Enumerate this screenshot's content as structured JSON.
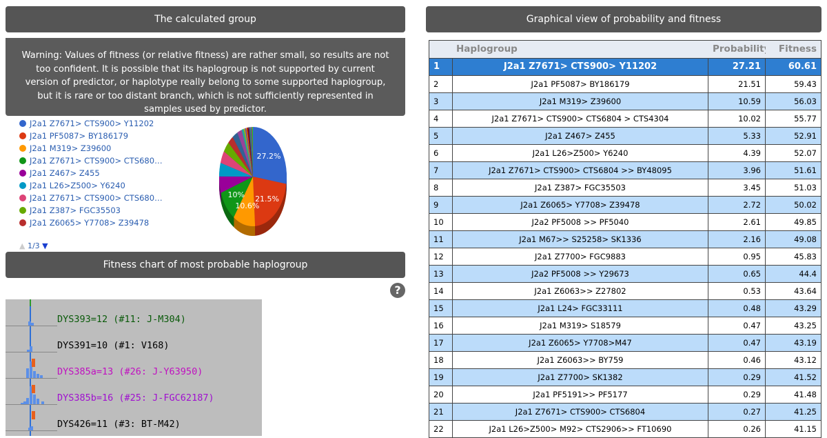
{
  "left": {
    "header": "The calculated group",
    "warning": "Warning: Values of fitness (or relative fitness) are rather small, so results are not too confident. It is possible that its haplogroup is not supported by current version of predictor, or haplotype really belong to some supported haplogroup, but it is rare or too distant branch, which is not sufficiently represented in samples used by predictor.",
    "pager": "1/3",
    "fitness_header": "Fitness chart of most probable haplogroup",
    "fitness_rows": [
      "DYS393=12 (#11: J-M304)",
      "DYS391=10 (#1: V168)",
      "DYS385a=13 (#26: J-Y63950)",
      "DYS385b=16 (#25: J-FGC62187)",
      "DYS426=11 (#3: BT-M42)"
    ]
  },
  "chart_data": {
    "type": "pie",
    "categories": [
      "J2a1 Z7671> CTS900> Y11202",
      "J2a1 PF5087> BY186179",
      "J2a1 M319> Z39600",
      "J2a1 Z7671> CTS900> CTS680…",
      "J2a1 Z467> Z455",
      "J2a1 L26>Z500> Y6240",
      "J2a1 Z7671> CTS900> CTS680…",
      "J2a1 Z387> FGC35503",
      "J2a1 Z6065> Y7708> Z39478",
      null,
      null,
      null,
      null,
      null,
      null,
      null,
      null,
      null,
      null,
      null,
      null,
      null
    ],
    "values": [
      27.2,
      21.5,
      10.6,
      10,
      5.3,
      4.4,
      4.0,
      3.5,
      2.7,
      2.6,
      2.2,
      1.0,
      0.7,
      0.5,
      0.5,
      0.5,
      0.5,
      0.5,
      0.3,
      0.3,
      0.3,
      0.3
    ],
    "value_labels": [
      "27.2%",
      "21.5%",
      "10.6%",
      "10%",
      null,
      null,
      null,
      null,
      null,
      null,
      null,
      null,
      null,
      null,
      null,
      null,
      null,
      null,
      null,
      null,
      null,
      null
    ],
    "colors": [
      "#3366cc",
      "#dc3912",
      "#ff9900",
      "#109618",
      "#990099",
      "#0099c6",
      "#dd4477",
      "#66aa00",
      "#b82e2e",
      "#316395",
      "#994499",
      "#22aa99",
      "#aaaa11",
      "#6633cc",
      "#e67300",
      "#8b0707",
      "#651067",
      "#329262",
      "#5574a6",
      "#3b3eac",
      "#b77322",
      "#16d620"
    ]
  },
  "right": {
    "header": "Graphical view of probability and fitness",
    "columns": [
      "Haplogroup",
      "Probability",
      "Fitness"
    ],
    "rows": [
      [
        1,
        "J2a1 Z7671> CTS900> Y11202",
        27.21,
        60.61
      ],
      [
        2,
        "J2a1 PF5087> BY186179",
        21.51,
        59.43
      ],
      [
        3,
        "J2a1 M319> Z39600",
        10.59,
        56.03
      ],
      [
        4,
        "J2a1 Z7671> CTS900> CTS6804 > CTS4304",
        10.02,
        55.77
      ],
      [
        5,
        "J2a1 Z467> Z455",
        5.33,
        52.91
      ],
      [
        6,
        "J2a1 L26>Z500> Y6240",
        4.39,
        52.07
      ],
      [
        7,
        "J2a1 Z7671> CTS900> CTS6804 >> BY48095",
        3.96,
        51.61
      ],
      [
        8,
        "J2a1 Z387> FGC35503",
        3.45,
        51.03
      ],
      [
        9,
        "J2a1 Z6065> Y7708> Z39478",
        2.72,
        50.02
      ],
      [
        10,
        "J2a2 PF5008 >> PF5040",
        2.61,
        49.85
      ],
      [
        11,
        "J2a1 M67>> S25258> SK1336",
        2.16,
        49.08
      ],
      [
        12,
        "J2a1 Z7700> FGC9883",
        0.95,
        45.83
      ],
      [
        13,
        "J2a2 PF5008 >> Y29673",
        0.65,
        44.4
      ],
      [
        14,
        "J2a1 Z6063>> Z27802",
        0.53,
        43.64
      ],
      [
        15,
        "J2a1 L24> FGC33111",
        0.48,
        43.29
      ],
      [
        16,
        "J2a1 M319> S18579",
        0.47,
        43.25
      ],
      [
        17,
        "J2a1 Z6065> Y7708>M47",
        0.47,
        43.19
      ],
      [
        18,
        "J2a1 Z6063>> BY759",
        0.46,
        43.12
      ],
      [
        19,
        "J2a1 Z7700> SK1382",
        0.29,
        41.52
      ],
      [
        20,
        "J2a1 PF5191>> PF5177",
        0.29,
        41.48
      ],
      [
        21,
        "J2a1 Z7671> CTS900> CTS6804",
        0.27,
        41.25
      ],
      [
        22,
        "J2a1 L26>Z500> M92> CTS2906>> FT10690",
        0.26,
        41.15
      ]
    ]
  }
}
